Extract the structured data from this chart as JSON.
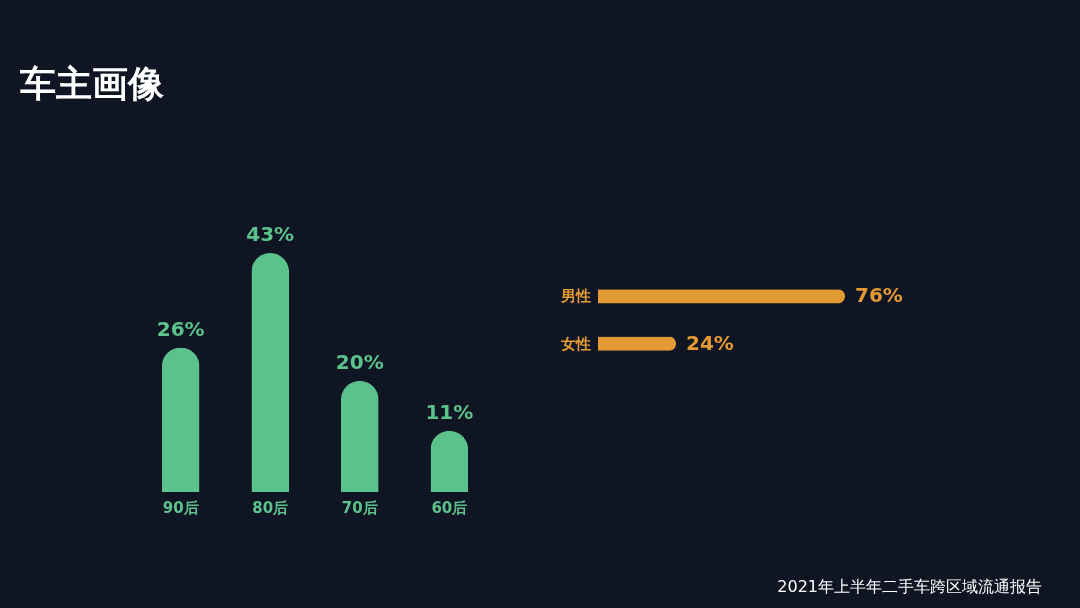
{
  "chart_data": [
    {
      "type": "bar",
      "title": "车主画像",
      "categories": [
        "90后",
        "80后",
        "70后",
        "60后"
      ],
      "values": [
        26,
        43,
        20,
        11
      ],
      "value_labels": [
        "26%",
        "43%",
        "20%",
        "11%"
      ],
      "color": "#5cc28c"
    },
    {
      "type": "bar",
      "orientation": "horizontal",
      "categories": [
        "男性",
        "女性"
      ],
      "values": [
        76,
        24
      ],
      "value_labels": [
        "76%",
        "24%"
      ],
      "color": "#e39a33",
      "annotations": [
        "2021年上半年二手车跨区域流通报告"
      ]
    }
  ]
}
